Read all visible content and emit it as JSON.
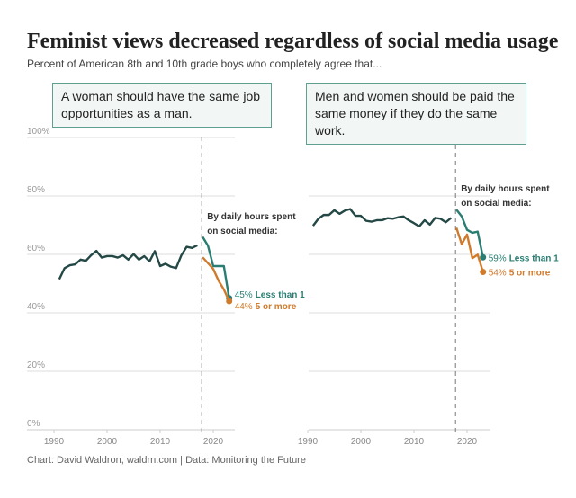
{
  "title": "Feminist views decreased regardless of social media usage",
  "subtitle": "Percent of American 8th and 10th grade boys who completely agree that...",
  "footer": "Chart: David Waldron, waldrn.com | Data: Monitoring the Future",
  "colors": {
    "overall": "#234845",
    "less_than_1": "#2a7d72",
    "five_or_more": "#d07a2c",
    "box_border": "#5f9f92"
  },
  "chart_data": [
    {
      "type": "line",
      "title": "A woman should have the same job opportunities as a man.",
      "ylim": [
        0,
        100
      ],
      "yticks": [
        "0%",
        "20%",
        "40%",
        "60%",
        "80%",
        "100%"
      ],
      "xticks": [
        "1990",
        "2000",
        "2010",
        "2020"
      ],
      "xlim": [
        1985,
        2025
      ],
      "grid": true,
      "split_year": 2018,
      "annotation": [
        "By daily hours spent",
        "on social media:"
      ],
      "series": [
        {
          "key": "overall",
          "x": [
            1991,
            1992,
            1993,
            1994,
            1995,
            1996,
            1997,
            1998,
            1999,
            2000,
            2001,
            2002,
            2003,
            2004,
            2005,
            2006,
            2007,
            2008,
            2009,
            2010,
            2011,
            2012,
            2013,
            2014,
            2015,
            2016,
            2017
          ],
          "values": [
            51.5,
            55.3,
            56.3,
            56.6,
            58.2,
            57.8,
            59.7,
            61.2,
            58.9,
            59.4,
            59.4,
            58.9,
            59.7,
            58.2,
            60.1,
            58.2,
            59.4,
            57.6,
            61.1,
            56,
            56.8,
            55.8,
            55.3,
            59.7,
            62.6,
            62.2,
            63.1
          ]
        },
        {
          "key": "less_than_1",
          "name": "Less than 1",
          "end_label": "45%",
          "x": [
            2018,
            2019,
            2020,
            2021,
            2022,
            2023
          ],
          "values": [
            66,
            63,
            56,
            56,
            56,
            45
          ]
        },
        {
          "key": "five_or_more",
          "name": "5 or more",
          "end_label": "44%",
          "x": [
            2018,
            2019,
            2020,
            2021,
            2022,
            2023
          ],
          "values": [
            59,
            57,
            55,
            51,
            48,
            44
          ]
        }
      ]
    },
    {
      "type": "line",
      "title": "Men and women should be paid the same money if they do the same work.",
      "ylim": [
        0,
        100
      ],
      "xticks": [
        "1990",
        "2000",
        "2010",
        "2020"
      ],
      "xlim": [
        1985,
        2025
      ],
      "grid": true,
      "split_year": 2018,
      "annotation": [
        "By daily hours spent",
        "on social media:"
      ],
      "series": [
        {
          "key": "overall",
          "x": [
            1991,
            1992,
            1993,
            1994,
            1995,
            1996,
            1997,
            1998,
            1999,
            2000,
            2001,
            2002,
            2003,
            2004,
            2005,
            2006,
            2007,
            2008,
            2009,
            2010,
            2011,
            2012,
            2013,
            2014,
            2015,
            2016,
            2017
          ],
          "values": [
            69.8,
            72.2,
            73.5,
            73.5,
            75.1,
            73.9,
            75,
            75.5,
            73.2,
            73.2,
            71.5,
            71.2,
            71.7,
            71.7,
            72.4,
            72.2,
            72.7,
            73,
            71.7,
            70.7,
            69.6,
            71.7,
            70.2,
            72.5,
            72.2,
            71,
            72.5
          ]
        },
        {
          "key": "less_than_1",
          "name": "Less than 1",
          "end_label": "59%",
          "x": [
            2018,
            2019,
            2020,
            2021,
            2022,
            2023
          ],
          "values": [
            75.3,
            73,
            68.4,
            67.4,
            67.8,
            59
          ]
        },
        {
          "key": "five_or_more",
          "name": "5 or more",
          "end_label": "54%",
          "x": [
            2018,
            2019,
            2020,
            2021,
            2022,
            2023
          ],
          "values": [
            69.1,
            63.5,
            66.8,
            58.7,
            59.9,
            54
          ]
        }
      ]
    }
  ]
}
